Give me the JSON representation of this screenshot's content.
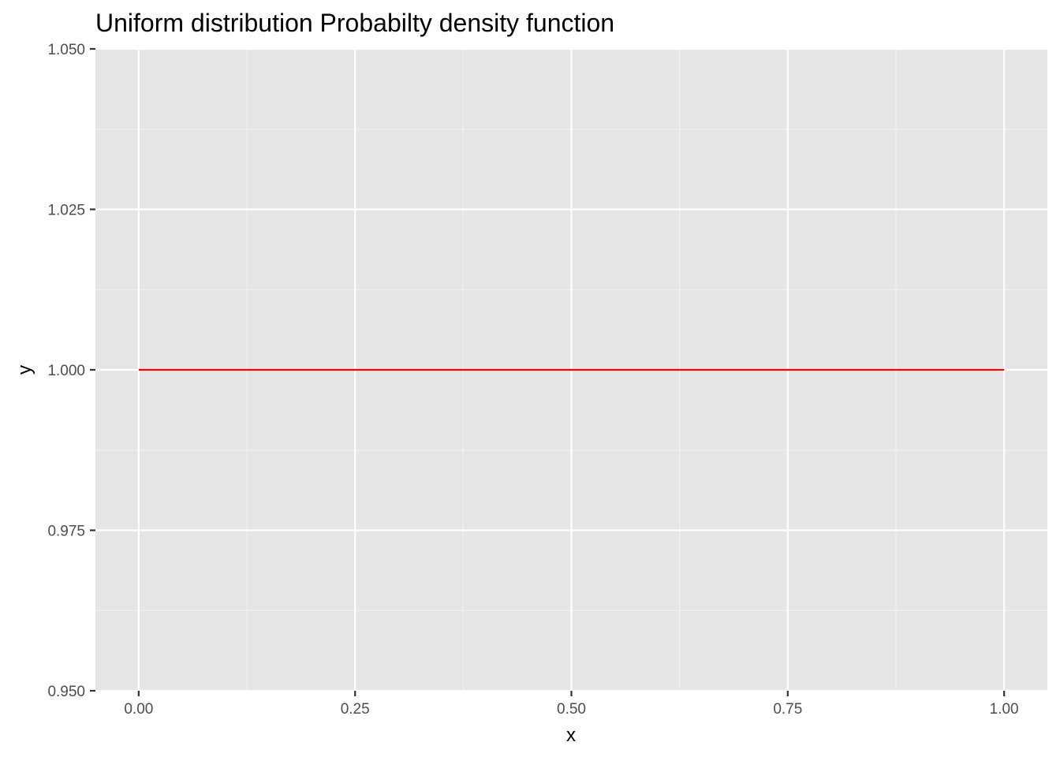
{
  "chart_data": {
    "type": "line",
    "title": "Uniform distribution Probabilty density function",
    "xlabel": "x",
    "ylabel": "y",
    "xlim": [
      -0.05,
      1.05
    ],
    "ylim": [
      0.95,
      1.05
    ],
    "x_ticks": [
      0.0,
      0.25,
      0.5,
      0.75,
      1.0
    ],
    "x_tick_labels": [
      "0.00",
      "0.25",
      "0.50",
      "0.75",
      "1.00"
    ],
    "y_ticks": [
      0.95,
      0.975,
      1.0,
      1.025,
      1.05
    ],
    "y_tick_labels": [
      "0.950",
      "0.975",
      "1.000",
      "1.025",
      "1.050"
    ],
    "grid": true,
    "legend": "none",
    "series": [
      {
        "color": "#ff0000",
        "x": [
          0.0,
          1.0
        ],
        "y": [
          1.0,
          1.0
        ]
      }
    ],
    "colors": {
      "panel_background": "#e5e5e5",
      "grid_major": "#ffffff",
      "grid_minor": "#f2f2f2",
      "tick_text": "#4d4d4d",
      "tick_mark": "#333333"
    }
  }
}
